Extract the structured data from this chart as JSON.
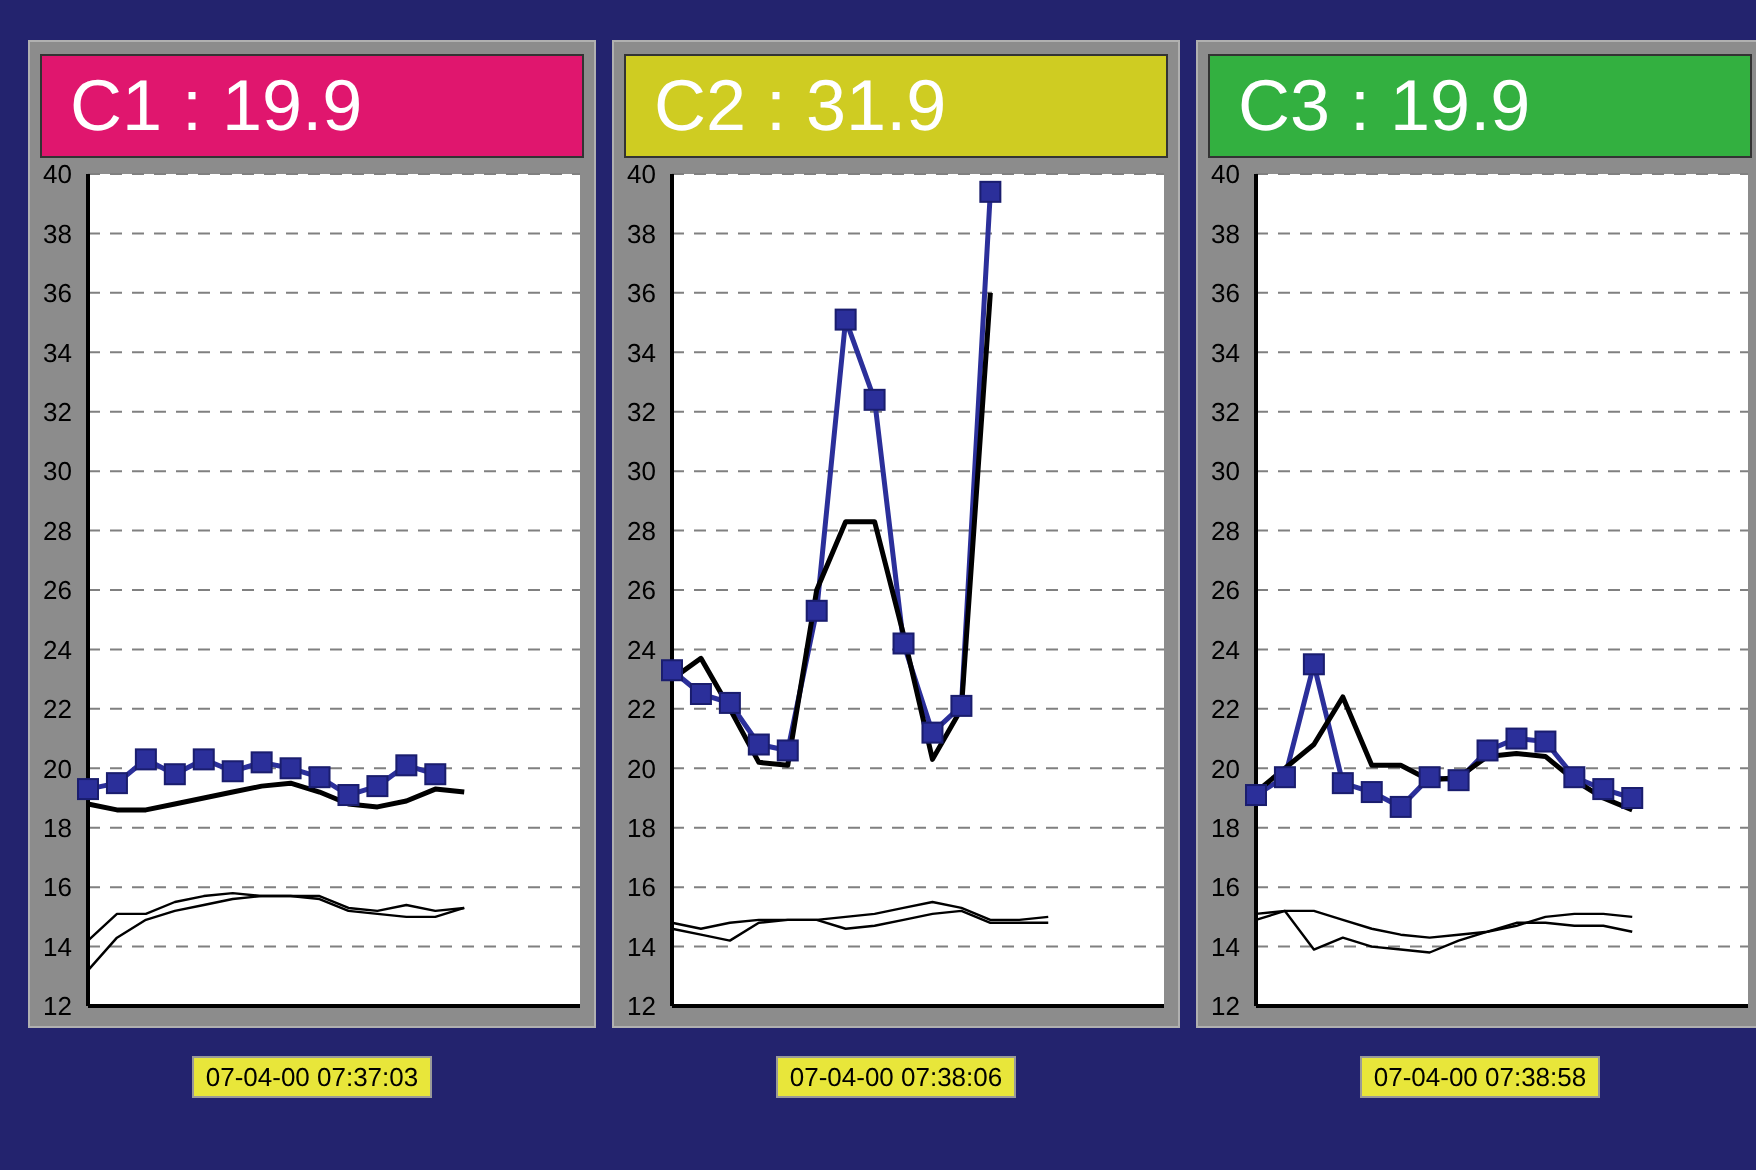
{
  "chart_data": [
    {
      "type": "line",
      "title": "C1 : 19.9",
      "categories": [
        null,
        null,
        null,
        null,
        null,
        null,
        null,
        null,
        null,
        null,
        null,
        null,
        null,
        null,
        null,
        null,
        null,
        null
      ],
      "series": [
        {
          "color": "#2b2f9a",
          "marker": "square",
          "values": [
            19.3,
            19.5,
            20.3,
            19.8,
            20.3,
            19.9,
            20.2,
            20.0,
            19.7,
            19.1,
            19.4,
            20.1,
            19.8,
            null,
            null,
            null,
            null,
            null
          ]
        },
        {
          "color": "#000000",
          "marker": "none",
          "values": [
            18.8,
            18.6,
            18.6,
            18.8,
            19.0,
            19.2,
            19.4,
            19.5,
            19.2,
            18.8,
            18.7,
            18.9,
            19.3,
            19.2,
            null,
            null,
            null,
            null
          ]
        },
        {
          "color": "#000000",
          "marker": "none",
          "values": [
            14.2,
            15.1,
            15.1,
            15.5,
            15.7,
            15.8,
            15.7,
            15.7,
            15.7,
            15.3,
            15.2,
            15.4,
            15.2,
            15.3,
            null,
            null,
            null,
            null
          ]
        },
        {
          "color": "#000000",
          "marker": "none",
          "values": [
            13.2,
            14.3,
            14.9,
            15.2,
            15.4,
            15.6,
            15.7,
            15.7,
            15.6,
            15.2,
            15.1,
            15.0,
            15.0,
            15.3,
            null,
            null,
            null,
            null
          ]
        }
      ],
      "ylim": [
        12,
        40
      ],
      "yticks": [
        12,
        14,
        16,
        18,
        20,
        22,
        24,
        26,
        28,
        30,
        32,
        34,
        36,
        38,
        40
      ],
      "grid": "y",
      "tick_labels": "y",
      "annotations": [
        "07-04-00 07:37:03"
      ]
    },
    {
      "type": "line",
      "title": "C2 : 31.9",
      "categories": [
        null,
        null,
        null,
        null,
        null,
        null,
        null,
        null,
        null,
        null,
        null,
        null,
        null,
        null,
        null,
        null,
        null,
        null
      ],
      "series": [
        {
          "color": "#2b2f9a",
          "marker": "square",
          "values": [
            23.3,
            22.5,
            22.2,
            20.8,
            20.6,
            25.3,
            35.1,
            32.4,
            24.2,
            21.2,
            22.1,
            39.4,
            null,
            null,
            null,
            null,
            null,
            null
          ]
        },
        {
          "color": "#000000",
          "marker": "none",
          "values": [
            23.0,
            23.7,
            22.0,
            20.2,
            20.1,
            26.0,
            28.3,
            28.3,
            24.5,
            20.3,
            22.0,
            36.0,
            null,
            null,
            null,
            null,
            null,
            null
          ]
        },
        {
          "color": "#000000",
          "marker": "none",
          "values": [
            14.8,
            14.6,
            14.8,
            14.9,
            14.9,
            14.9,
            15.0,
            15.1,
            15.3,
            15.5,
            15.3,
            14.9,
            14.9,
            15.0,
            null,
            null,
            null,
            null
          ]
        },
        {
          "color": "#000000",
          "marker": "none",
          "values": [
            14.6,
            14.4,
            14.2,
            14.8,
            14.9,
            14.9,
            14.6,
            14.7,
            14.9,
            15.1,
            15.2,
            14.8,
            14.8,
            14.8,
            null,
            null,
            null,
            null
          ]
        }
      ],
      "ylim": [
        12,
        40
      ],
      "yticks": [
        12,
        14,
        16,
        18,
        20,
        22,
        24,
        26,
        28,
        30,
        32,
        34,
        36,
        38,
        40
      ],
      "grid": "y",
      "tick_labels": "y",
      "annotations": [
        "07-04-00 07:38:06"
      ]
    },
    {
      "type": "line",
      "title": "C3 : 19.9",
      "categories": [
        null,
        null,
        null,
        null,
        null,
        null,
        null,
        null,
        null,
        null,
        null,
        null,
        null,
        null,
        null,
        null,
        null,
        null
      ],
      "series": [
        {
          "color": "#2b2f9a",
          "marker": "square",
          "values": [
            19.1,
            19.7,
            23.5,
            19.5,
            19.2,
            18.7,
            19.7,
            19.6,
            20.6,
            21.0,
            20.9,
            19.7,
            19.3,
            19.0,
            null,
            null,
            null,
            null
          ]
        },
        {
          "color": "#000000",
          "marker": "none",
          "values": [
            19.2,
            null,
            20.8,
            22.4,
            20.1,
            20.1,
            19.6,
            19.7,
            20.4,
            20.5,
            20.4,
            19.6,
            19.0,
            18.6,
            null,
            null,
            null,
            null
          ]
        },
        {
          "color": "#000000",
          "marker": "none",
          "values": [
            15.1,
            15.2,
            15.2,
            14.9,
            14.6,
            14.4,
            14.3,
            14.4,
            14.5,
            14.7,
            15.0,
            15.1,
            15.1,
            15.0,
            null,
            null,
            null,
            null
          ]
        },
        {
          "color": "#000000",
          "marker": "none",
          "values": [
            14.9,
            15.2,
            13.9,
            14.3,
            14.0,
            13.9,
            13.8,
            14.2,
            14.5,
            14.8,
            14.8,
            14.7,
            14.7,
            14.5,
            null,
            null,
            null,
            null
          ]
        }
      ],
      "ylim": [
        12,
        40
      ],
      "yticks": [
        12,
        14,
        16,
        18,
        20,
        22,
        24,
        26,
        28,
        30,
        32,
        34,
        36,
        38,
        40
      ],
      "grid": "y",
      "tick_labels": "y",
      "annotations": [
        "07-04-00 07:38:58"
      ]
    }
  ]
}
